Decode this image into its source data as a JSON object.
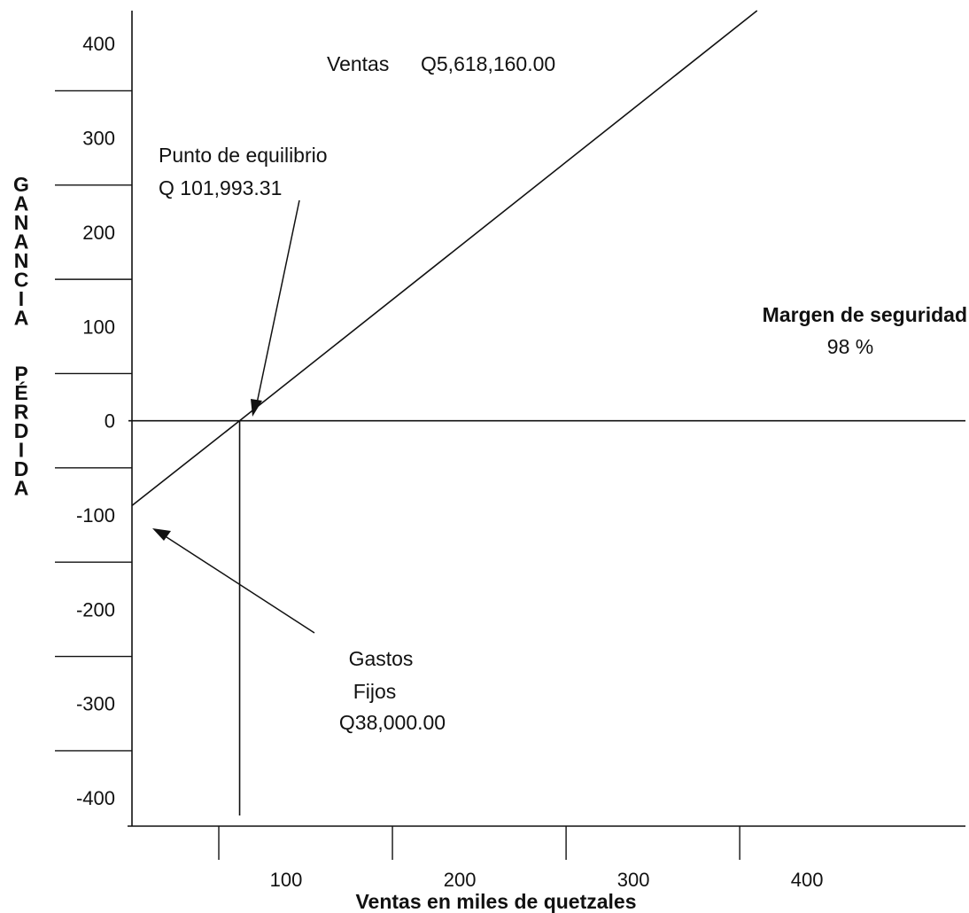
{
  "chart_data": {
    "type": "line",
    "title": "",
    "xlabel": "Ventas en miles de quetzales",
    "ylabel": "GANANCIA PÉRDIDA",
    "ylabel_letters": [
      "G",
      "A",
      "N",
      "A",
      "N",
      "C",
      "I",
      "A",
      "",
      "P",
      "É",
      "R",
      "D",
      "I",
      "D",
      "A"
    ],
    "x_ticks": [
      100,
      200,
      300,
      400
    ],
    "x_tick_labels": [
      "100",
      "200",
      "300",
      "400"
    ],
    "y_ticks": [
      400,
      300,
      200,
      100,
      0,
      -100,
      -200,
      -300,
      -400
    ],
    "y_tick_labels": [
      "400",
      "300",
      "200",
      "100",
      "0",
      "-100",
      "-200",
      "-300",
      "-400"
    ],
    "xlim": [
      0,
      480
    ],
    "ylim": [
      -430,
      435
    ],
    "grid": false,
    "series": [
      {
        "x": [
          0,
          62,
          360
        ],
        "y": [
          -90,
          0,
          435
        ]
      }
    ],
    "reference_lines": {
      "zero_line_y": 0,
      "breakeven_x": 62
    },
    "annotations": {
      "ventas": {
        "label": "Ventas",
        "value": "Q5,618,160.00"
      },
      "equilibrio": {
        "line1": "Punto de equilibrio",
        "line2": "Q 101,993.31"
      },
      "margen": {
        "line1": "Margen de seguridad",
        "line2": "98 %"
      },
      "gastos": {
        "line1": "Gastos",
        "line2": "Fijos",
        "line3": "Q38,000.00"
      }
    }
  }
}
